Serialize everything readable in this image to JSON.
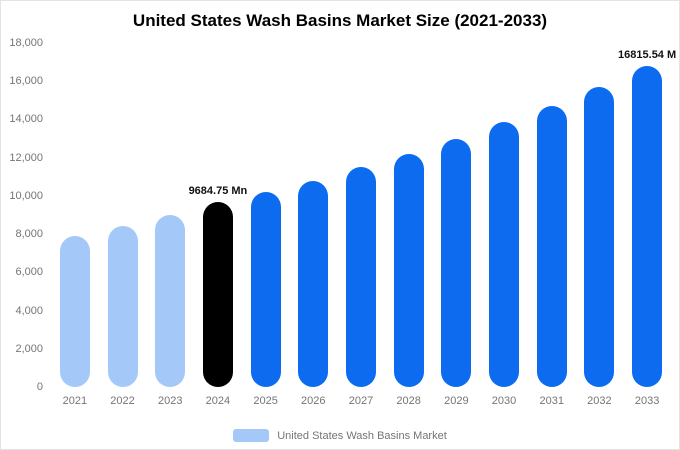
{
  "title": "United States Wash Basins Market Size (2021-2033)",
  "chart_data": {
    "type": "bar",
    "title": "United States Wash Basins Market Size (2021-2033)",
    "categories": [
      "2021",
      "2022",
      "2023",
      "2024",
      "2025",
      "2026",
      "2027",
      "2028",
      "2029",
      "2030",
      "2031",
      "2032",
      "2033"
    ],
    "values": [
      7900,
      8400,
      9000,
      9684.75,
      10200,
      10800,
      11500,
      12200,
      13000,
      13850,
      14700,
      15700,
      16815.54
    ],
    "bar_colors": [
      "#a4c9f8",
      "#a4c9f8",
      "#a4c9f8",
      "#000000",
      "#0d6bf0",
      "#0d6bf0",
      "#0d6bf0",
      "#0d6bf0",
      "#0d6bf0",
      "#0d6bf0",
      "#0d6bf0",
      "#0d6bf0",
      "#0d6bf0"
    ],
    "labels": [
      "",
      "",
      "",
      "9684.75 Mn",
      "",
      "",
      "",
      "",
      "",
      "",
      "",
      "",
      "16815.54 M"
    ],
    "ylim": [
      0,
      18000
    ],
    "yticks": [
      "0",
      "2,000",
      "4,000",
      "6,000",
      "8,000",
      "10,000",
      "12,000",
      "14,000",
      "16,000",
      "18,000"
    ],
    "grid": false,
    "legend_position": "bottom",
    "legend": {
      "label": "United States Wash Basins Market",
      "color": "#a4c9f8"
    },
    "colors": {
      "historical": "#a4c9f8",
      "highlight": "#000000",
      "forecast": "#0d6bf0",
      "axis_text": "#757575",
      "title_text": "#000000"
    }
  }
}
